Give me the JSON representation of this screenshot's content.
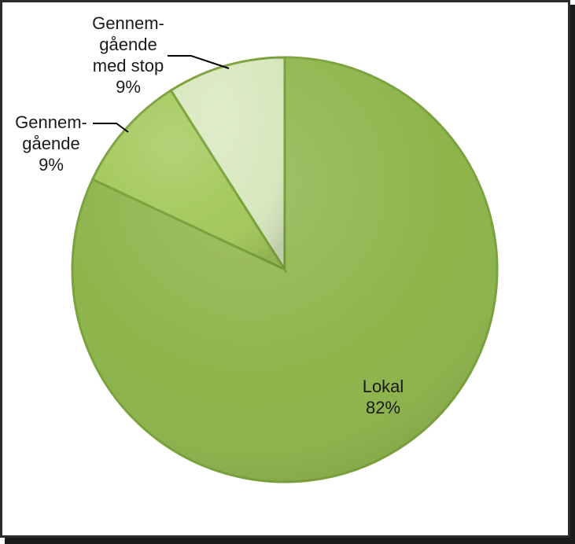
{
  "chart_data": {
    "type": "pie",
    "title": "",
    "slices": [
      {
        "name": "Lokal",
        "value": 82,
        "label_lines": [
          "Lokal",
          "82%"
        ],
        "color": "#8db44a"
      },
      {
        "name": "Gennemgående",
        "value": 9,
        "label_lines": [
          "Gennem-",
          "gående",
          "9%"
        ],
        "color": "#a4c95c"
      },
      {
        "name": "Gennemgående med stop",
        "value": 9,
        "label_lines": [
          "Gennem-",
          "gående",
          "med stop",
          "9%"
        ],
        "color": "#d9e8bf"
      }
    ],
    "start_angle_deg": 0,
    "direction": "clockwise",
    "legend": "none"
  }
}
